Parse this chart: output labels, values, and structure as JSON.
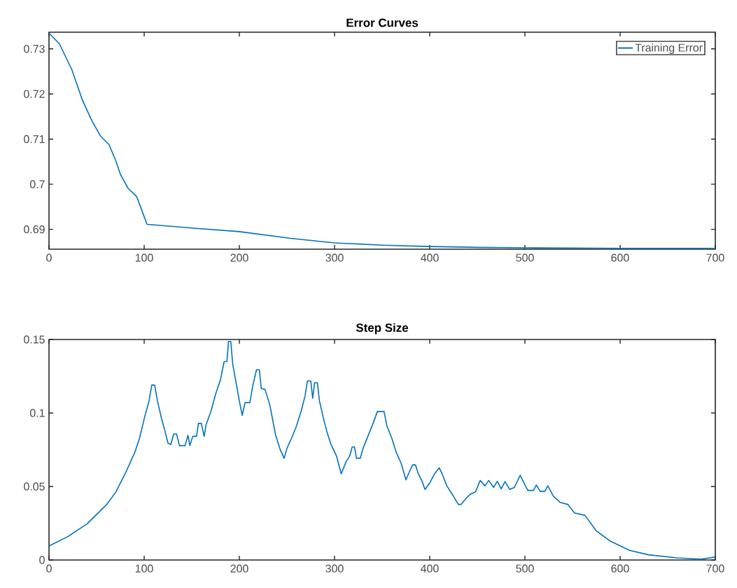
{
  "chart_data": [
    {
      "type": "line",
      "title": "Error Curves",
      "x": [
        0,
        11,
        24,
        35,
        45,
        54,
        63,
        70,
        75,
        83,
        92,
        97,
        103,
        110,
        150,
        200,
        254,
        300,
        350,
        400,
        450,
        500,
        600,
        700
      ],
      "series": [
        {
          "name": "Training Error",
          "color": "#0072bd",
          "values": [
            0.7335,
            0.7311,
            0.7254,
            0.7187,
            0.7141,
            0.7107,
            0.7088,
            0.7053,
            0.7022,
            0.6991,
            0.6973,
            0.6945,
            0.6911,
            0.691,
            0.6903,
            0.6895,
            0.688,
            0.687,
            0.6865,
            0.6862,
            0.686,
            0.6859,
            0.6858,
            0.6858
          ]
        }
      ],
      "xlim": [
        0,
        700
      ],
      "ylim": [
        0.6856,
        0.7337
      ],
      "xticks": [
        0,
        100,
        200,
        300,
        400,
        500,
        600,
        700
      ],
      "yticks": [
        0.69,
        0.7,
        0.71,
        0.72,
        0.73
      ],
      "legend": "top right"
    },
    {
      "type": "line",
      "title": "Step Size",
      "x": [
        0,
        20,
        40,
        60,
        70,
        80,
        90,
        95,
        100,
        105,
        108,
        111,
        114,
        118,
        122,
        125,
        128,
        131,
        134,
        137,
        143,
        146,
        148,
        151,
        155,
        157,
        160,
        163,
        165,
        170,
        175,
        180,
        184,
        187,
        188.5,
        191,
        193,
        197,
        200,
        203,
        206,
        211,
        214,
        218,
        221,
        223,
        227,
        232,
        238,
        243,
        247,
        250,
        255,
        260,
        265,
        269,
        271.5,
        275,
        277,
        279,
        282,
        284,
        288,
        292,
        296,
        302,
        307,
        312,
        316,
        318.5,
        321,
        323,
        327,
        330,
        335,
        340,
        345,
        352,
        355,
        360,
        365,
        370,
        375,
        379,
        382,
        385,
        388,
        392,
        395,
        400,
        405,
        410,
        413,
        418,
        424,
        430,
        433,
        438,
        443,
        448,
        453,
        458,
        462,
        467,
        471,
        475,
        479,
        484,
        489,
        495,
        499,
        503,
        509,
        512,
        516,
        521,
        524,
        530,
        537,
        545,
        552,
        563,
        575,
        590,
        610,
        630,
        660,
        685,
        700
      ],
      "series": [
        {
          "color": "#0072bd",
          "values": [
            0.0095,
            0.016,
            0.0246,
            0.0373,
            0.046,
            0.0587,
            0.073,
            0.0825,
            0.096,
            0.108,
            0.119,
            0.119,
            0.108,
            0.0968,
            0.0873,
            0.0794,
            0.0786,
            0.0857,
            0.0857,
            0.0778,
            0.0778,
            0.0849,
            0.0778,
            0.0841,
            0.0841,
            0.0929,
            0.0929,
            0.0841,
            0.092,
            0.1008,
            0.1127,
            0.1222,
            0.135,
            0.135,
            0.1487,
            0.1487,
            0.1333,
            0.119,
            0.108,
            0.0984,
            0.1071,
            0.107,
            0.1183,
            0.1294,
            0.1294,
            0.1167,
            0.116,
            0.1055,
            0.0851,
            0.0749,
            0.0692,
            0.076,
            0.0831,
            0.0912,
            0.1014,
            0.1116,
            0.1218,
            0.1218,
            0.11,
            0.1206,
            0.1206,
            0.1086,
            0.0973,
            0.0871,
            0.079,
            0.0708,
            0.0586,
            0.0667,
            0.0708,
            0.0769,
            0.0769,
            0.0692,
            0.0692,
            0.076,
            0.0841,
            0.0922,
            0.101,
            0.101,
            0.0912,
            0.0831,
            0.0729,
            0.0657,
            0.0545,
            0.0606,
            0.0647,
            0.0647,
            0.0586,
            0.0535,
            0.048,
            0.0524,
            0.0586,
            0.0627,
            0.0586,
            0.0504,
            0.0443,
            0.0378,
            0.0378,
            0.0418,
            0.0449,
            0.0463,
            0.0541,
            0.0504,
            0.0541,
            0.0494,
            0.0535,
            0.0484,
            0.0533,
            0.048,
            0.0494,
            0.0576,
            0.0524,
            0.0473,
            0.0473,
            0.051,
            0.0467,
            0.0467,
            0.0504,
            0.0433,
            0.0392,
            0.0378,
            0.032,
            0.0304,
            0.0198,
            0.0127,
            0.0065,
            0.0035,
            0.0014,
            0.0006,
            0.002
          ]
        }
      ],
      "xlim": [
        0,
        700
      ],
      "ylim": [
        0,
        0.15
      ],
      "xticks": [
        0,
        100,
        200,
        300,
        400,
        500,
        600,
        700
      ],
      "yticks": [
        0,
        0.05,
        0.1,
        0.15
      ]
    }
  ]
}
